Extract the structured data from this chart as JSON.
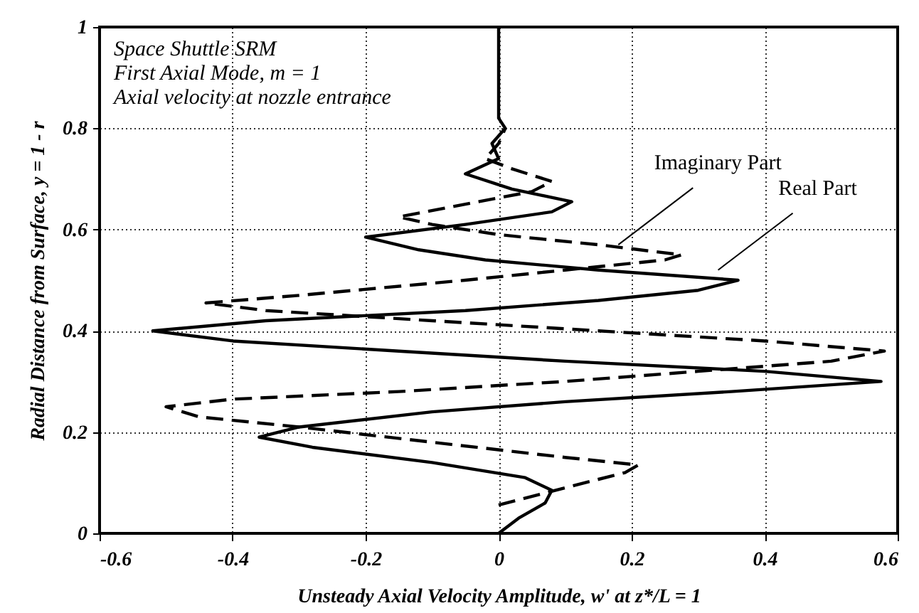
{
  "chart_data": {
    "type": "line",
    "xlabel": "Unsteady Axial Velocity Amplitude, w' at z*/L = 1",
    "ylabel": "Radial Distance from Surface, y = 1 - r",
    "xlim": [
      -0.6,
      0.6
    ],
    "xticks": [
      -0.6,
      -0.4,
      -0.2,
      0,
      0.2,
      0.4,
      0.6
    ],
    "ylim": [
      0,
      1
    ],
    "yticks": [
      0,
      0.2,
      0.4,
      0.6,
      0.8,
      1
    ],
    "grid": true,
    "marker": "none",
    "annotations": [
      "Space Shuttle SRM",
      "First Axial Mode, m = 1",
      "Axial velocity at nozzle entrance",
      {
        "text": "Imaginary Part",
        "x": 0.18,
        "y": 0.57
      },
      {
        "text": "Real Part",
        "x": 0.33,
        "y": 0.52
      }
    ],
    "series": [
      {
        "color": "#000000",
        "line_style": "solid",
        "x": [
          0,
          0.03,
          0.07,
          0.08,
          0.04,
          -0.1,
          -0.28,
          -0.36,
          -0.3,
          -0.1,
          0.1,
          0.35,
          0.575,
          0.4,
          0.1,
          -0.15,
          -0.4,
          -0.52,
          -0.35,
          -0.05,
          0.15,
          0.3,
          0.36,
          0.15,
          -0.02,
          -0.12,
          -0.2,
          -0.05,
          0.08,
          0.11,
          0.02,
          -0.05,
          0,
          -0.01,
          0.01,
          0,
          0
        ],
        "values": [
          0,
          0.03,
          0.06,
          0.085,
          0.11,
          0.14,
          0.17,
          0.19,
          0.21,
          0.24,
          0.26,
          0.28,
          0.3,
          0.32,
          0.34,
          0.36,
          0.38,
          0.4,
          0.42,
          0.44,
          0.46,
          0.48,
          0.5,
          0.52,
          0.54,
          0.56,
          0.585,
          0.61,
          0.635,
          0.655,
          0.68,
          0.71,
          0.74,
          0.77,
          0.8,
          0.82,
          1
        ]
      },
      {
        "color": "#000000",
        "line_style": "dashed",
        "x": [
          0,
          0.1,
          0.19,
          0.21,
          0.1,
          -0.1,
          -0.3,
          -0.45,
          -0.5,
          -0.4,
          -0.15,
          0.1,
          0.3,
          0.5,
          0.58,
          0.4,
          0.15,
          -0.1,
          -0.35,
          -0.44,
          -0.3,
          -0.05,
          0.1,
          0.25,
          0.275,
          0.15,
          0,
          -0.1,
          -0.15,
          -0.05,
          0.05,
          0.08,
          0.02,
          -0.02,
          0,
          0.01
        ],
        "values": [
          0.056,
          0.09,
          0.12,
          0.135,
          0.15,
          0.18,
          0.21,
          0.23,
          0.25,
          0.265,
          0.28,
          0.3,
          0.32,
          0.34,
          0.36,
          0.38,
          0.4,
          0.42,
          0.44,
          0.455,
          0.47,
          0.5,
          0.52,
          0.54,
          0.55,
          0.57,
          0.59,
          0.61,
          0.625,
          0.65,
          0.675,
          0.695,
          0.72,
          0.74,
          0.77,
          0.8
        ]
      }
    ]
  }
}
